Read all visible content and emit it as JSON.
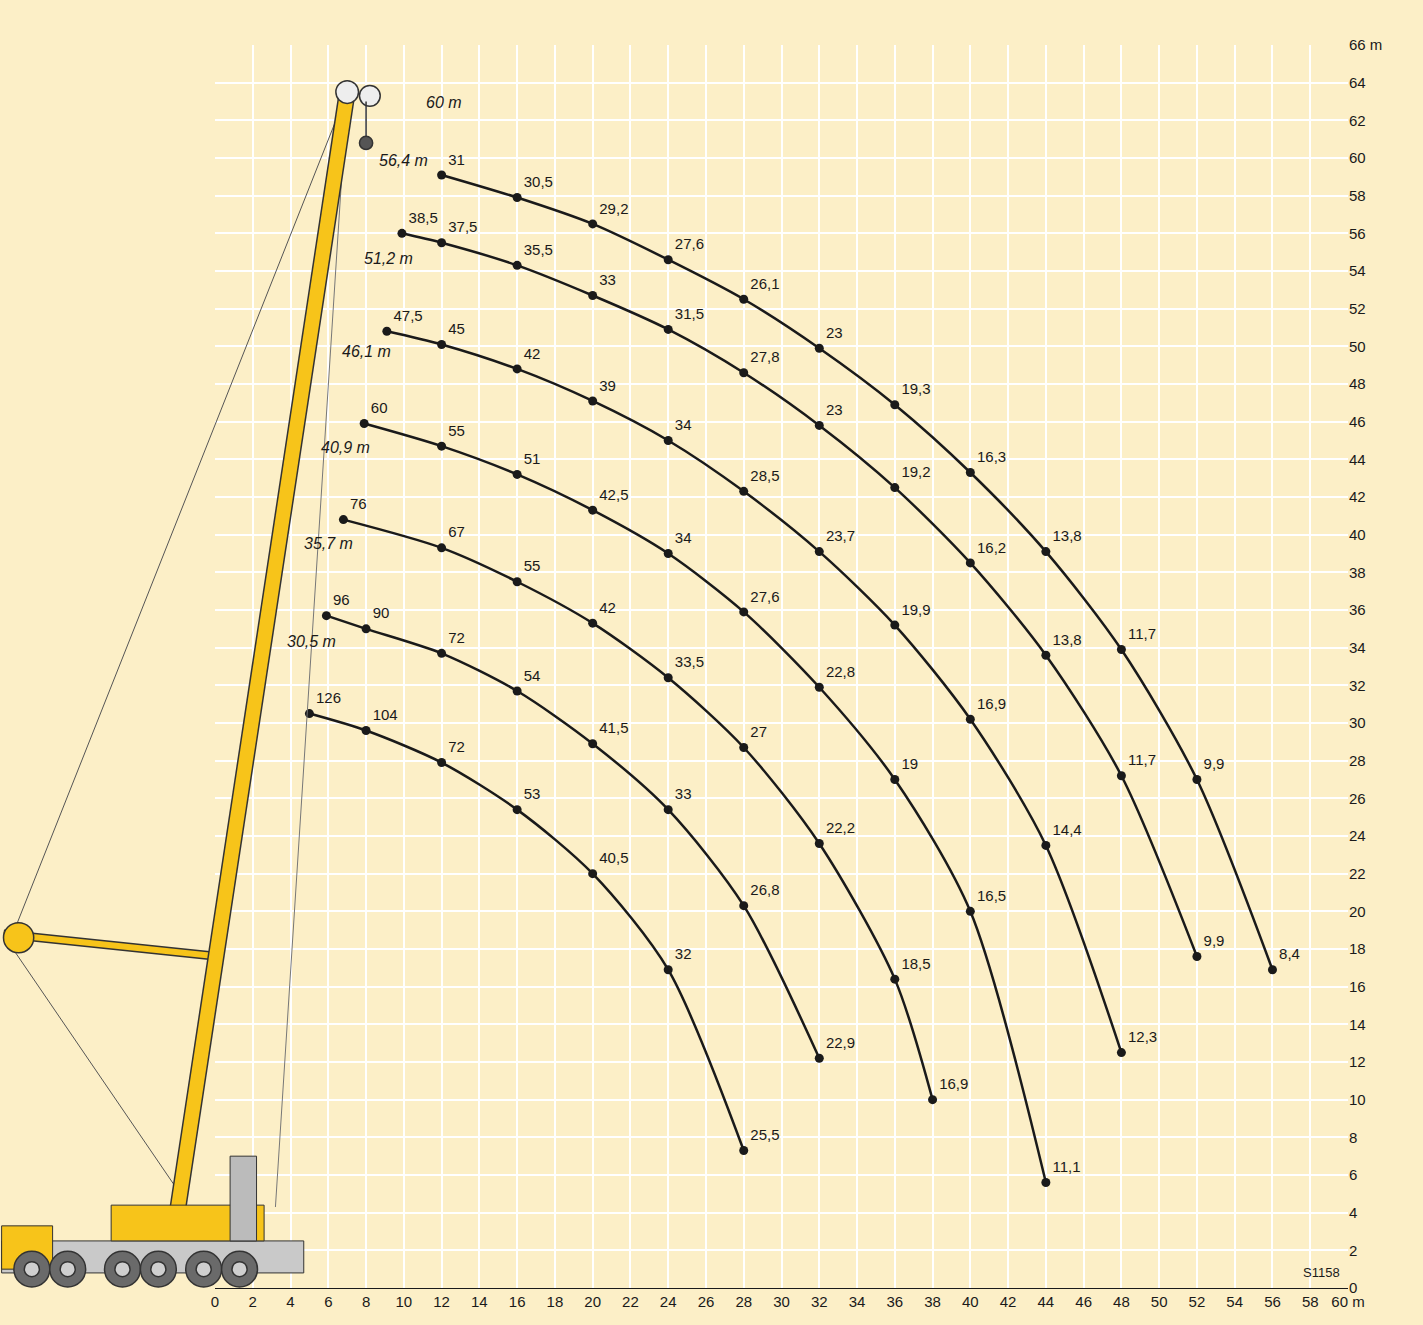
{
  "chart_data": {
    "type": "line",
    "code": "S1158",
    "grid": true,
    "marker": "circle",
    "xlim": [
      0,
      60
    ],
    "ylim": [
      0,
      66
    ],
    "xticks": [
      0,
      2,
      4,
      6,
      8,
      10,
      12,
      14,
      16,
      18,
      20,
      22,
      24,
      26,
      28,
      30,
      32,
      34,
      36,
      38,
      40,
      42,
      44,
      46,
      48,
      50,
      52,
      54,
      56,
      58,
      {
        "value": 60,
        "label": "60 m"
      }
    ],
    "yticks": [
      0,
      2,
      4,
      6,
      8,
      10,
      12,
      14,
      16,
      18,
      20,
      22,
      24,
      26,
      28,
      30,
      32,
      34,
      36,
      38,
      40,
      42,
      44,
      46,
      48,
      50,
      52,
      54,
      56,
      58,
      60,
      62,
      64,
      {
        "value": 66,
        "label": "66 m"
      }
    ],
    "series": [
      {
        "name": "30,5 m",
        "color": "#1a1a1a",
        "x": [
          5,
          8,
          12,
          16,
          20,
          24,
          28
        ],
        "values": [
          30.5,
          29.6,
          27.9,
          25.4,
          22.0,
          16.9,
          7.3
        ],
        "capacities": [
          126,
          104,
          72,
          53,
          40.5,
          32,
          25.5
        ],
        "capacity_labels": [
          "126",
          "104",
          "72",
          "53",
          "40,5",
          "32",
          "25,5"
        ]
      },
      {
        "name": "35,7 m",
        "color": "#1a1a1a",
        "x": [
          5.9,
          8,
          12,
          16,
          20,
          24,
          28,
          32
        ],
        "values": [
          35.7,
          35.0,
          33.7,
          31.7,
          28.9,
          25.4,
          20.3,
          12.2
        ],
        "capacities": [
          96,
          90,
          72,
          54,
          41.5,
          33,
          26.8,
          22.9
        ],
        "capacity_labels": [
          "96",
          "90",
          "72",
          "54",
          "41,5",
          "33",
          "26,8",
          "22,9"
        ]
      },
      {
        "name": "40,9 m",
        "color": "#1a1a1a",
        "x": [
          6.8,
          12,
          16,
          20,
          24,
          28,
          32,
          36,
          38
        ],
        "values": [
          40.8,
          39.3,
          37.5,
          35.3,
          32.4,
          28.7,
          23.6,
          16.4,
          10.0
        ],
        "capacities": [
          76,
          67,
          55,
          42,
          33.5,
          27,
          22.2,
          18.5,
          16.9
        ],
        "capacity_labels": [
          "76",
          "67",
          "55",
          "42",
          "33,5",
          "27",
          "22,2",
          "18,5",
          "16,9"
        ]
      },
      {
        "name": "46,1 m",
        "color": "#1a1a1a",
        "x": [
          7.9,
          12,
          16,
          20,
          24,
          28,
          32,
          36,
          40,
          44
        ],
        "values": [
          45.9,
          44.7,
          43.2,
          41.3,
          39.0,
          35.9,
          31.9,
          27.0,
          20.0,
          5.6
        ],
        "capacities": [
          60,
          55,
          51,
          42.5,
          34,
          27.6,
          22.8,
          19,
          16.5,
          11.1
        ],
        "capacity_labels": [
          "60",
          "55",
          "51",
          "42,5",
          "34",
          "27,6",
          "22,8",
          "19",
          "16,5",
          "11,1"
        ]
      },
      {
        "name": "51,2 m",
        "color": "#1a1a1a",
        "x": [
          9.1,
          12,
          16,
          20,
          24,
          28,
          32,
          36,
          40,
          44,
          48
        ],
        "values": [
          50.8,
          50.1,
          48.8,
          47.1,
          45.0,
          42.3,
          39.1,
          35.2,
          30.2,
          23.5,
          12.5
        ],
        "capacities": [
          47.5,
          45,
          42,
          39,
          34,
          28.5,
          23.7,
          19.9,
          16.9,
          14.4,
          12.3
        ],
        "capacity_labels": [
          "47,5",
          "45",
          "42",
          "39",
          "34",
          "28,5",
          "23,7",
          "19,9",
          "16,9",
          "14,4",
          "12,3"
        ]
      },
      {
        "name": "56,4 m",
        "color": "#1a1a1a",
        "x": [
          9.9,
          12,
          16,
          20,
          24,
          28,
          32,
          36,
          40,
          44,
          48,
          52
        ],
        "values": [
          56.0,
          55.5,
          54.3,
          52.7,
          50.9,
          48.6,
          45.8,
          42.5,
          38.5,
          33.6,
          27.2,
          17.6
        ],
        "capacities": [
          38.5,
          37.5,
          35.5,
          33,
          31.5,
          27.8,
          23,
          19.2,
          16.2,
          13.8,
          11.7,
          9.9
        ],
        "capacity_labels": [
          "38,5",
          "37,5",
          "35,5",
          "33",
          "31,5",
          "27,8",
          "23",
          "19,2",
          "16,2",
          "13,8",
          "11,7",
          "9,9"
        ]
      },
      {
        "name": "60 m",
        "color": "#1a1a1a",
        "x": [
          12,
          16,
          20,
          24,
          28,
          32,
          36,
          40,
          44,
          48,
          52,
          56
        ],
        "values": [
          59.1,
          57.9,
          56.5,
          54.6,
          52.5,
          49.9,
          46.9,
          43.3,
          39.1,
          33.9,
          27.0,
          16.9
        ],
        "capacities": [
          31,
          30.5,
          29.2,
          27.6,
          26.1,
          23,
          19.3,
          16.3,
          13.8,
          11.7,
          9.9,
          8.4
        ],
        "capacity_labels": [
          "31",
          "30,5",
          "29,2",
          "27,6",
          "26,1",
          "23",
          "19,3",
          "16,3",
          "13,8",
          "11,7",
          "9,9",
          "8,4"
        ]
      }
    ]
  }
}
